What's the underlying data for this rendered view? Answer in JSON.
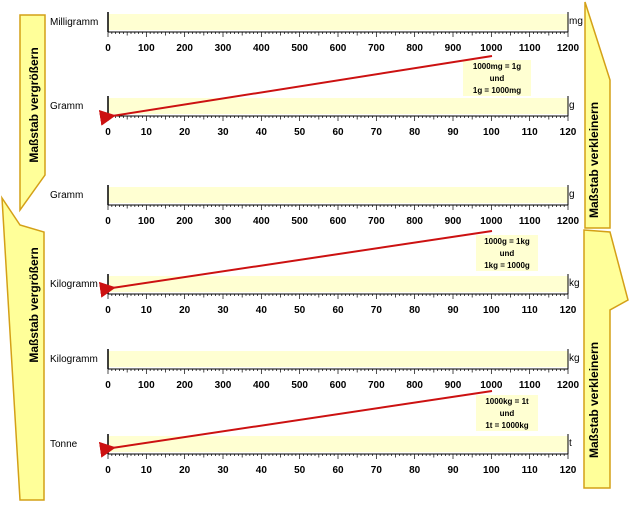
{
  "colors": {
    "band": "#ffffd2",
    "arrow": "#cc1111",
    "arrow_stroke": "#cc1111",
    "side_fill": "#ffff99",
    "side_border": "#d4a017",
    "note_bg": "#ffffd2"
  },
  "ticks": [
    "0",
    "10",
    "20",
    "30",
    "40",
    "50",
    "60",
    "70",
    "80",
    "90",
    "100",
    "110",
    "120"
  ],
  "ticks_x100": [
    "0",
    "100",
    "200",
    "300",
    "400",
    "500",
    "600",
    "700",
    "800",
    "900",
    "1000",
    "1100",
    "1200"
  ],
  "rows": [
    {
      "name": "Milligramm",
      "unit": "mg",
      "scale": "x100"
    },
    {
      "name": "Gramm",
      "unit": "g",
      "scale": "x1"
    },
    {
      "name": "Gramm",
      "unit": "g",
      "scale": "x100"
    },
    {
      "name": "Kilogramm",
      "unit": "kg",
      "scale": "x1"
    },
    {
      "name": "Kilogramm",
      "unit": "kg",
      "scale": "x100"
    },
    {
      "name": "Tonne",
      "unit": "t",
      "scale": "x1"
    }
  ],
  "notes": [
    {
      "lines": [
        "1000mg = 1g",
        "und",
        "1g = 1000mg"
      ]
    },
    {
      "lines": [
        "1000g = 1kg",
        "und",
        "1kg = 1000g"
      ]
    },
    {
      "lines": [
        "1000kg = 1t",
        "und",
        "1t = 1000kg"
      ]
    }
  ],
  "side_labels": {
    "left_top": "Maßstab vergrößern",
    "left_bottom": "Maßstab vergrößern",
    "right_top": "Maßstab verkleinern",
    "right_bottom": "Maßstab verkleinern"
  }
}
